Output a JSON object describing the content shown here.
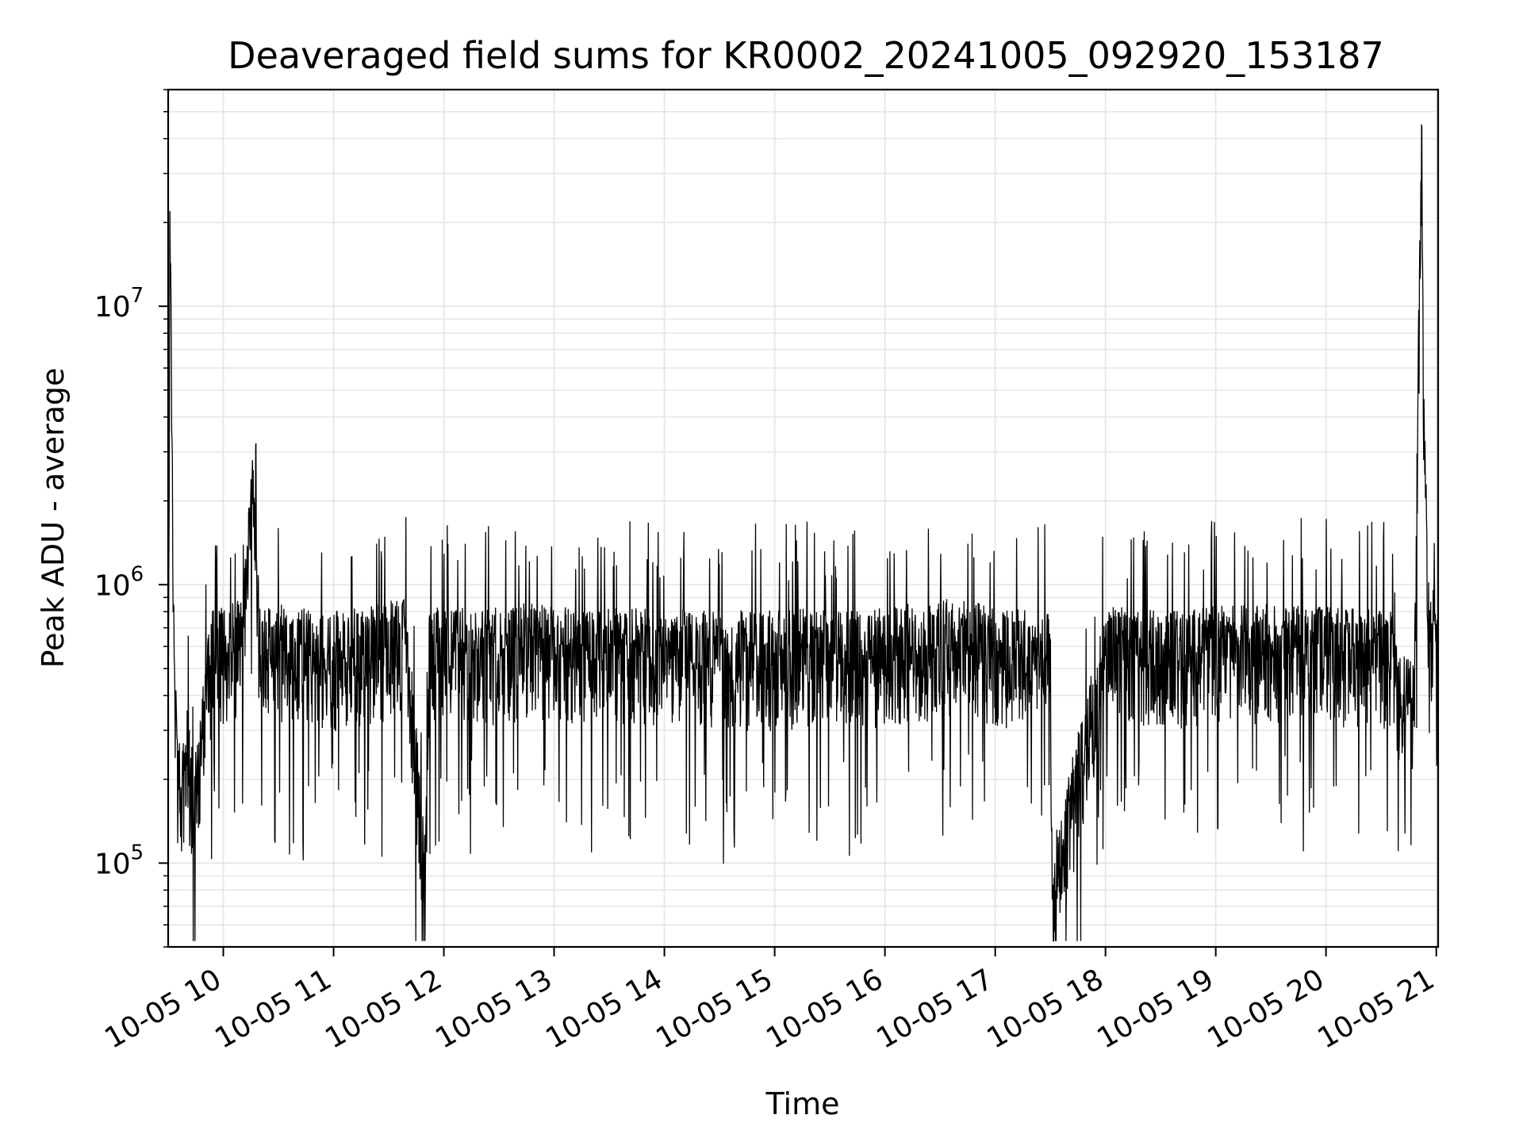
{
  "chart_data": {
    "type": "line",
    "title": "Deaveraged field sums for KR0002_20241005_092920_153187",
    "xlabel": "Time",
    "ylabel": "Peak ADU - average",
    "yscale": "log",
    "grid": true,
    "xlim": [
      "2024-10-05 09:30",
      "2024-10-05 21:01"
    ],
    "ylim": [
      50000,
      60000000
    ],
    "x_ticks": [
      "10-05 10",
      "10-05 11",
      "10-05 12",
      "10-05 13",
      "10-05 14",
      "10-05 15",
      "10-05 16",
      "10-05 17",
      "10-05 18",
      "10-05 19",
      "10-05 20",
      "10-05 21"
    ],
    "y_ticks": [
      {
        "value": 100000,
        "base": "10",
        "exp": "5"
      },
      {
        "value": 1000000,
        "base": "10",
        "exp": "6"
      },
      {
        "value": 10000000,
        "base": "10",
        "exp": "7"
      }
    ],
    "line_color": "#000000",
    "grid_color": "#e6e6e6",
    "series": [
      {
        "x": [
          "2024-10-05 09:30",
          "2024-10-05 09:31",
          "2024-10-05 09:33",
          "2024-10-05 09:35",
          "2024-10-05 09:37",
          "2024-10-05 09:40",
          "2024-10-05 09:44",
          "2024-10-05 09:48",
          "2024-10-05 09:50",
          "2024-10-05 09:53",
          "2024-10-05 09:56",
          "2024-10-05 10:00",
          "2024-10-05 10:10",
          "2024-10-05 10:16",
          "2024-10-05 10:20",
          "2024-10-05 10:35",
          "2024-10-05 10:42",
          "2024-10-05 11:00",
          "2024-10-05 11:15",
          "2024-10-05 11:40",
          "2024-10-05 11:50",
          "2024-10-05 11:52",
          "2024-10-05 12:00",
          "2024-10-05 12:20",
          "2024-10-05 12:50",
          "2024-10-05 13:00",
          "2024-10-05 13:40",
          "2024-10-05 14:00",
          "2024-10-05 14:30",
          "2024-10-05 15:00",
          "2024-10-05 15:30",
          "2024-10-05 15:52",
          "2024-10-05 16:00",
          "2024-10-05 16:37",
          "2024-10-05 17:00",
          "2024-10-05 17:30",
          "2024-10-05 17:31",
          "2024-10-05 18:00",
          "2024-10-05 18:40",
          "2024-10-05 19:00",
          "2024-10-05 19:40",
          "2024-10-05 20:00",
          "2024-10-05 20:35",
          "2024-10-05 20:40",
          "2024-10-05 20:48",
          "2024-10-05 20:52",
          "2024-10-05 20:53",
          "2024-10-05 20:56",
          "2024-10-05 21:00"
        ],
        "y": [
          250000,
          22000000,
          600000,
          200000,
          170000,
          250000,
          160000,
          250000,
          380000,
          500000,
          600000,
          550000,
          600000,
          1950000,
          550000,
          580000,
          560000,
          540000,
          560000,
          600000,
          80000,
          560000,
          560000,
          550000,
          580000,
          560000,
          550000,
          550000,
          540000,
          540000,
          560000,
          540000,
          560000,
          600000,
          560000,
          530000,
          74000,
          560000,
          540000,
          560000,
          570000,
          560000,
          550000,
          380000,
          350000,
          45000000,
          4000000,
          700000,
          600000
        ]
      }
    ]
  }
}
